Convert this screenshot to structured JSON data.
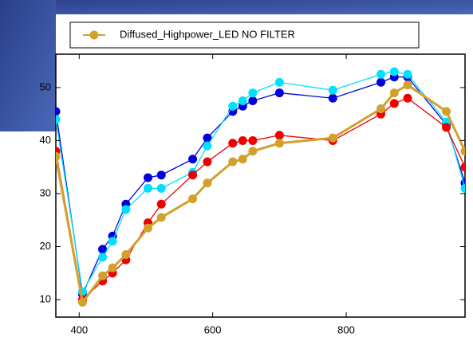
{
  "chart_data": {
    "type": "line",
    "x": [
      365,
      405,
      435,
      450,
      470,
      503,
      523,
      570,
      592,
      630,
      645,
      660,
      700,
      780,
      852,
      872,
      892,
      950,
      978
    ],
    "series": [
      {
        "color": "#0000dd",
        "values": [
          45.5,
          11,
          19.5,
          22,
          28,
          33,
          33.5,
          36.5,
          40.5,
          45.5,
          46.5,
          47.5,
          49,
          48,
          51,
          52,
          52,
          43,
          32
        ]
      },
      {
        "color": "#00e0ff",
        "values": [
          44,
          11.5,
          18,
          21,
          27,
          31,
          31,
          34,
          39,
          46.5,
          47.5,
          49,
          51,
          49.5,
          52.5,
          53,
          52.5,
          43.5,
          31
        ]
      },
      {
        "color": "#ee0000",
        "values": [
          38,
          10,
          13.5,
          15,
          17.5,
          24.5,
          28,
          33.5,
          36,
          39.5,
          40,
          40,
          41,
          40,
          45,
          47,
          48,
          42.5,
          35
        ]
      },
      {
        "name": "Diffused_Highpower_LED NO FILTER",
        "color": "#d4a02c",
        "values": [
          37,
          9.5,
          14.5,
          16,
          18.5,
          23.5,
          25.5,
          29,
          32,
          36,
          36.5,
          38,
          39.5,
          40.5,
          46,
          49,
          50.5,
          45.5,
          38
        ]
      }
    ],
    "xlim": [
      365,
      978
    ],
    "ylim": [
      6.7,
      56.3
    ],
    "xticks": [
      400,
      600,
      800
    ],
    "yticks": [
      10,
      20,
      30,
      40,
      50
    ]
  }
}
